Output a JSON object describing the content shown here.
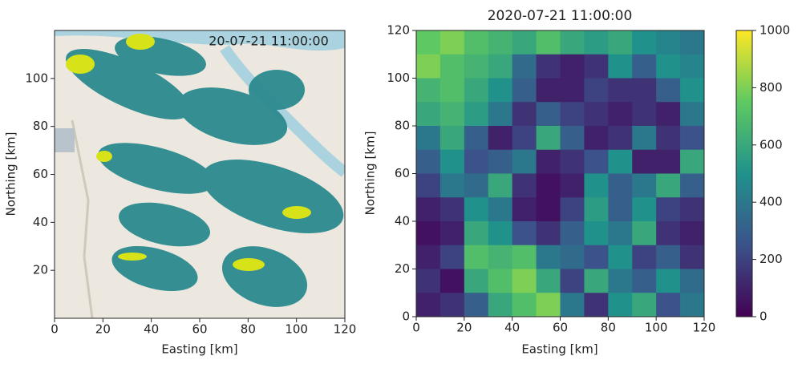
{
  "chart_data": [
    {
      "type": "map",
      "annotation": "20-07-21 11:00:00",
      "x_label": "Easting [km]",
      "y_label": "Northing [km]",
      "xlim": [
        0,
        120
      ],
      "ylim": [
        0,
        120
      ],
      "xticks": [
        0,
        20,
        40,
        60,
        80,
        100,
        120
      ],
      "yticks": [
        20,
        40,
        60,
        80,
        100
      ]
    },
    {
      "type": "heatmap",
      "title": "2020-07-21 11:00:00",
      "x_label": "Easting [km]",
      "y_label": "Northing [km]",
      "xlim": [
        0,
        120
      ],
      "ylim": [
        0,
        120
      ],
      "xticks": [
        0,
        20,
        40,
        60,
        80,
        100,
        120
      ],
      "yticks": [
        0,
        20,
        40,
        60,
        80,
        100,
        120
      ],
      "colormap": "viridis",
      "zlim": [
        0,
        1000
      ],
      "zticks": [
        0,
        200,
        400,
        600,
        800,
        1000
      ],
      "z": [
        [
          750,
          800,
          700,
          650,
          600,
          700,
          600,
          550,
          600,
          500,
          450,
          400
        ],
        [
          800,
          700,
          650,
          600,
          350,
          150,
          100,
          150,
          500,
          300,
          500,
          450
        ],
        [
          650,
          700,
          600,
          500,
          300,
          100,
          100,
          200,
          150,
          150,
          300,
          500
        ],
        [
          600,
          650,
          550,
          400,
          150,
          300,
          200,
          150,
          100,
          150,
          100,
          400
        ],
        [
          400,
          600,
          300,
          100,
          200,
          600,
          300,
          100,
          150,
          400,
          150,
          250
        ],
        [
          300,
          500,
          250,
          300,
          400,
          100,
          150,
          250,
          500,
          100,
          100,
          600
        ],
        [
          200,
          400,
          350,
          600,
          150,
          50,
          100,
          500,
          300,
          400,
          600,
          300
        ],
        [
          100,
          150,
          500,
          400,
          100,
          50,
          200,
          550,
          300,
          500,
          200,
          150
        ],
        [
          50,
          100,
          600,
          500,
          250,
          150,
          300,
          500,
          400,
          600,
          150,
          100
        ],
        [
          100,
          200,
          700,
          650,
          700,
          400,
          350,
          250,
          500,
          200,
          300,
          150
        ],
        [
          150,
          50,
          600,
          700,
          800,
          600,
          200,
          600,
          400,
          300,
          500,
          350
        ],
        [
          100,
          150,
          300,
          600,
          700,
          800,
          400,
          150,
          500,
          600,
          250,
          400
        ]
      ]
    }
  ]
}
